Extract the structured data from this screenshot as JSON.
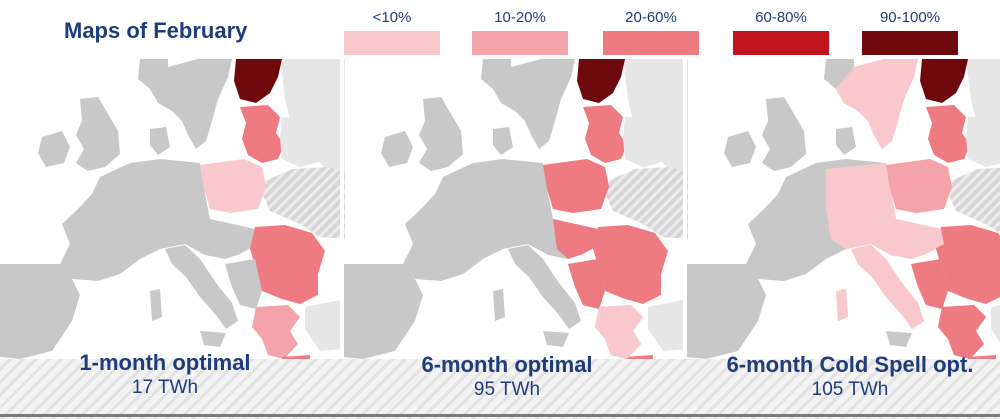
{
  "title": "Maps of February",
  "legend": [
    {
      "label": "<10%",
      "color": "#f9c8cc"
    },
    {
      "label": "10-20%",
      "color": "#f4a3aa"
    },
    {
      "label": "20-60%",
      "color": "#ef7b82"
    },
    {
      "label": "60-80%",
      "color": "#c0151f"
    },
    {
      "label": "90-100%",
      "color": "#6e0a0e"
    }
  ],
  "maps": [
    {
      "name": "1-month optimal",
      "value": "17 TWh"
    },
    {
      "name": "6-month optimal",
      "value": "95 TWh"
    },
    {
      "name": "6-month Cold Spell opt.",
      "value": "105 TWh"
    }
  ],
  "colors": {
    "land": "#c8c8c8",
    "non_eu": "#e6e6e6",
    "sea": "#ffffff",
    "border": "#ffffff"
  }
}
